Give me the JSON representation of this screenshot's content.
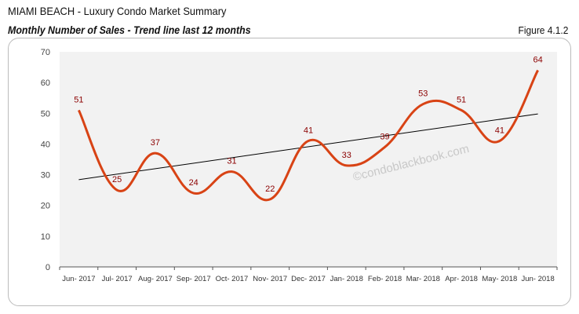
{
  "header": {
    "title_bold": "MIAMI BEACH",
    "title_rest": " - Luxury Condo Market Summary",
    "subtitle": "Monthly Number of Sales - Trend line last 12 months",
    "figure": "Figure 4.1.2"
  },
  "watermark": "©condoblackbook.com",
  "chart_data": {
    "type": "line",
    "title": "",
    "categories": [
      "Jun- 2017",
      "Jul- 2017",
      "Aug- 2017",
      "Sep- 2017",
      "Oct- 2017",
      "Nov- 2017",
      "Dec- 2017",
      "Jan- 2018",
      "Feb- 2018",
      "Mar- 2018",
      "Apr- 2018",
      "May- 2018",
      "Jun- 2018"
    ],
    "values": [
      51,
      25,
      37,
      24,
      31,
      22,
      41,
      33,
      39,
      53,
      51,
      41,
      64
    ],
    "trendline": {
      "start": 28.4,
      "end": 49.8
    },
    "ylim": [
      0,
      70
    ],
    "yticks": [
      0,
      10,
      20,
      30,
      40,
      50,
      60,
      70
    ],
    "colors": {
      "line": "#d84315",
      "trend": "#000000",
      "label": "#8b0000",
      "plot_bg": "#f2f2f2"
    },
    "smooth": true,
    "grid": false,
    "legend": "none"
  }
}
